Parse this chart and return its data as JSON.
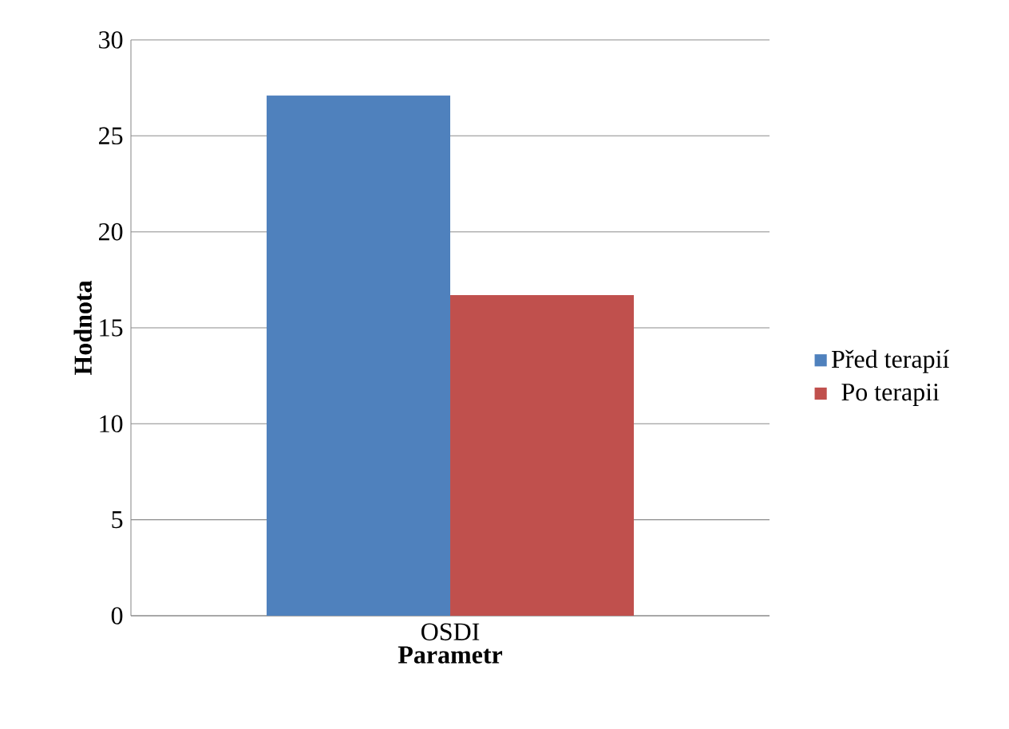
{
  "chart_data": {
    "type": "bar",
    "xlabel": "Parametr",
    "ylabel": "Hodnota",
    "categories": [
      "OSDI"
    ],
    "series": [
      {
        "name": "Před terapií",
        "color": "#4f81bd",
        "values": [
          27.1
        ]
      },
      {
        "name": "Po terapii",
        "color": "#c0504d",
        "values": [
          16.7
        ]
      }
    ],
    "ylim": [
      0,
      30
    ],
    "yticks": [
      0,
      5,
      10,
      15,
      20,
      25,
      30
    ],
    "grid": "y",
    "legend": "right"
  }
}
